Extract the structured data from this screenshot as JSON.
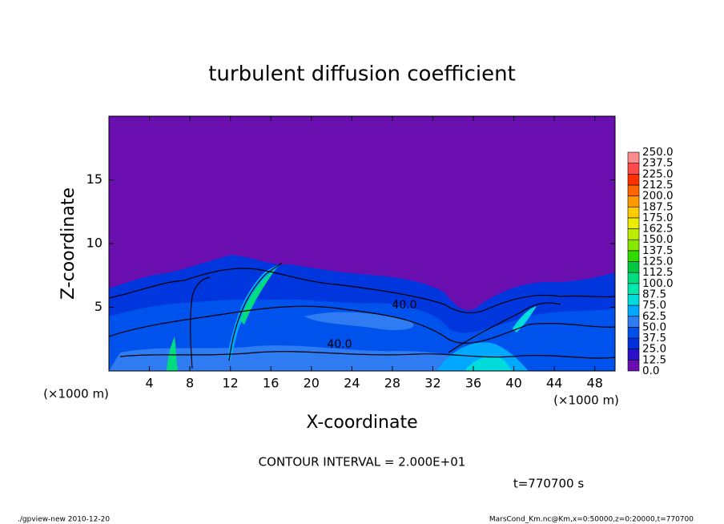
{
  "chart_data": {
    "type": "contour",
    "title": "turbulent diffusion coefficient",
    "xlabel": "X-coordinate",
    "ylabel": "Z-coordinate",
    "x_unit": "(×1000 m)",
    "xlim": [
      0,
      50
    ],
    "xticks": [
      4,
      8,
      12,
      16,
      20,
      24,
      28,
      32,
      36,
      40,
      44,
      48
    ],
    "ylim": [
      0,
      20
    ],
    "yticks": [
      5,
      10,
      15
    ],
    "contour_labels": [
      "40.0",
      "40.0"
    ],
    "colorbar": {
      "levels": [
        {
          "value": 0,
          "label": "0.0"
        },
        12.5,
        {
          "value": 25,
          "label": "25.0"
        },
        37.5,
        {
          "value": 50,
          "label": "50.0"
        },
        62.5,
        {
          "value": 75,
          "label": "75.0"
        },
        87.5,
        {
          "value": 100,
          "label": "100.0"
        },
        112.5,
        {
          "value": 125,
          "label": "125.0"
        },
        137.5,
        {
          "value": 150,
          "label": "150.0"
        },
        162.5,
        {
          "value": 175,
          "label": "175.0"
        },
        187.5,
        {
          "value": 200,
          "label": "200.0"
        },
        212.5,
        {
          "value": 225,
          "label": "225.0"
        },
        237.5,
        {
          "value": 250,
          "label": "250.0"
        }
      ],
      "colors": [
        "#6a0eb0",
        "#2a10c8",
        "#0030dc",
        "#0050ec",
        "#2f7cf2",
        "#00a8ff",
        "#00dcdc",
        "#00e8b0",
        "#00dc80",
        "#00c840",
        "#30dc00",
        "#88e800",
        "#bcec00",
        "#ecec00",
        "#ffcc00",
        "#ff9900",
        "#ff6600",
        "#ff3000",
        "#ff4848",
        "#ff8c8c"
      ]
    },
    "contour_interval": "CONTOUR INTERVAL = 2.000E+01",
    "time": "t=770700 s",
    "footer_left": "./gpview-new  2010-12-20",
    "footer_right": "MarsCond_Km.nc@Km,x=0:50000,z=0:20000,t=770700"
  }
}
